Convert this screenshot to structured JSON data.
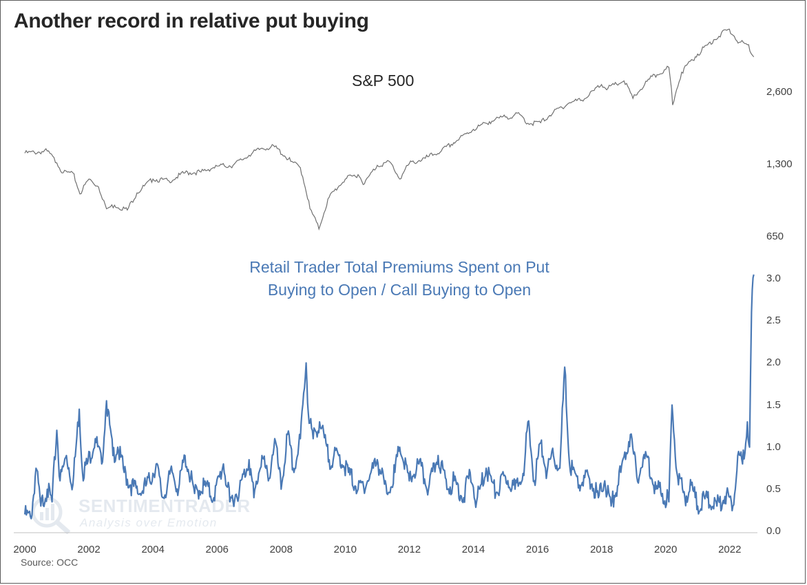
{
  "title": "Another record in relative put buying",
  "source": "Source: OCC",
  "watermark": {
    "main": "SENTIMENTRADER",
    "sub": "Analysis over Emotion"
  },
  "colors": {
    "sp500": "#6f6f6f",
    "ratio": "#4a79b5",
    "text": "#262626",
    "axis": "#bfbfbf"
  },
  "chart_data": [
    {
      "type": "line",
      "title": "S&P 500",
      "scale": "log",
      "y_ticks": [
        650,
        1300,
        2600
      ],
      "y_tick_labels": [
        "650",
        "1,300",
        "2,600"
      ],
      "ylim": [
        650,
        5200
      ],
      "x": [
        2000.0,
        2000.3,
        2000.7,
        2001.0,
        2001.2,
        2001.5,
        2001.72,
        2002.0,
        2002.3,
        2002.55,
        2002.8,
        2003.2,
        2003.5,
        2004.0,
        2004.5,
        2005.0,
        2005.5,
        2006.0,
        2006.5,
        2007.0,
        2007.4,
        2007.8,
        2008.3,
        2008.6,
        2008.9,
        2009.18,
        2009.5,
        2010.0,
        2010.4,
        2010.6,
        2011.0,
        2011.4,
        2011.7,
        2012.0,
        2012.5,
        2013.0,
        2013.5,
        2014.0,
        2014.5,
        2015.0,
        2015.45,
        2015.7,
        2016.1,
        2016.5,
        2017.0,
        2017.5,
        2018.0,
        2018.2,
        2018.7,
        2018.98,
        2019.5,
        2020.0,
        2020.1,
        2020.22,
        2020.5,
        2021.0,
        2021.5,
        2021.95,
        2022.3,
        2022.55,
        2022.75
      ],
      "values": [
        1450,
        1460,
        1480,
        1320,
        1200,
        1200,
        980,
        1130,
        1050,
        850,
        880,
        840,
        990,
        1130,
        1110,
        1200,
        1210,
        1280,
        1290,
        1420,
        1520,
        1540,
        1340,
        1260,
        850,
        700,
        950,
        1130,
        1180,
        1080,
        1290,
        1330,
        1130,
        1310,
        1380,
        1480,
        1640,
        1820,
        1960,
        2050,
        2100,
        1930,
        1940,
        2150,
        2350,
        2450,
        2800,
        2700,
        2900,
        2450,
        2950,
        3230,
        3300,
        2300,
        3150,
        3750,
        4300,
        4750,
        4200,
        4100,
        3650
      ]
    },
    {
      "type": "line",
      "title": "Retail Trader Total Premiums Spent on Put Buying to Open / Call Buying to Open",
      "y_ticks": [
        0.0,
        0.5,
        1.0,
        1.5,
        2.0,
        2.5,
        3.0
      ],
      "y_tick_labels": [
        "0.0",
        "0.5",
        "1.0",
        "1.5",
        "2.0",
        "2.5",
        "3.0"
      ],
      "ylim": [
        0.0,
        3.0
      ],
      "x_ticks": [
        "2000",
        "2002",
        "2004",
        "2006",
        "2008",
        "2010",
        "2012",
        "2014",
        "2016",
        "2018",
        "2020",
        "2022"
      ],
      "x": [
        2000.0,
        2000.2,
        2000.35,
        2000.5,
        2000.7,
        2000.85,
        2001.0,
        2001.1,
        2001.3,
        2001.5,
        2001.7,
        2001.8,
        2001.95,
        2002.2,
        2002.4,
        2002.55,
        2002.75,
        2002.9,
        2003.1,
        2003.3,
        2003.6,
        2003.9,
        2004.1,
        2004.3,
        2004.6,
        2004.8,
        2005.0,
        2005.3,
        2005.6,
        2005.9,
        2006.2,
        2006.4,
        2006.7,
        2007.0,
        2007.15,
        2007.4,
        2007.6,
        2007.8,
        2008.0,
        2008.2,
        2008.4,
        2008.6,
        2008.78,
        2008.85,
        2009.0,
        2009.2,
        2009.5,
        2009.8,
        2010.1,
        2010.4,
        2010.7,
        2011.0,
        2011.3,
        2011.55,
        2011.7,
        2012.0,
        2012.3,
        2012.6,
        2012.9,
        2013.2,
        2013.4,
        2013.7,
        2013.9,
        2014.1,
        2014.4,
        2014.7,
        2015.0,
        2015.3,
        2015.6,
        2015.7,
        2015.9,
        2016.1,
        2016.3,
        2016.5,
        2016.7,
        2016.85,
        2017.0,
        2017.3,
        2017.6,
        2017.9,
        2018.1,
        2018.3,
        2018.6,
        2018.9,
        2019.1,
        2019.4,
        2019.7,
        2019.9,
        2020.1,
        2020.2,
        2020.35,
        2020.6,
        2020.8,
        2021.0,
        2021.3,
        2021.6,
        2021.9,
        2022.1,
        2022.25,
        2022.4,
        2022.55,
        2022.62,
        2022.68,
        2022.75
      ],
      "values": [
        0.2,
        0.15,
        0.75,
        0.3,
        0.5,
        0.35,
        1.2,
        0.6,
        0.9,
        0.55,
        1.45,
        0.7,
        0.8,
        1.1,
        0.8,
        1.55,
        0.9,
        1.0,
        0.7,
        0.55,
        0.45,
        0.6,
        0.8,
        0.4,
        0.7,
        0.5,
        0.9,
        0.45,
        0.55,
        0.4,
        0.8,
        0.35,
        0.5,
        0.85,
        0.4,
        0.9,
        0.6,
        1.1,
        0.5,
        1.15,
        0.7,
        1.1,
        2.0,
        1.4,
        1.1,
        1.3,
        0.85,
        0.9,
        0.7,
        0.5,
        0.6,
        0.85,
        0.45,
        0.7,
        1.0,
        0.6,
        0.8,
        0.5,
        0.9,
        0.5,
        0.6,
        0.4,
        0.7,
        0.35,
        0.75,
        0.45,
        0.65,
        0.5,
        0.8,
        1.3,
        0.6,
        1.05,
        0.7,
        0.9,
        0.75,
        1.95,
        0.8,
        0.55,
        0.65,
        0.4,
        0.6,
        0.3,
        0.7,
        1.15,
        0.65,
        0.9,
        0.5,
        0.45,
        0.35,
        1.5,
        0.7,
        0.4,
        0.55,
        0.3,
        0.4,
        0.3,
        0.45,
        0.3,
        0.9,
        0.8,
        1.3,
        1.0,
        2.6,
        3.05
      ]
    }
  ]
}
